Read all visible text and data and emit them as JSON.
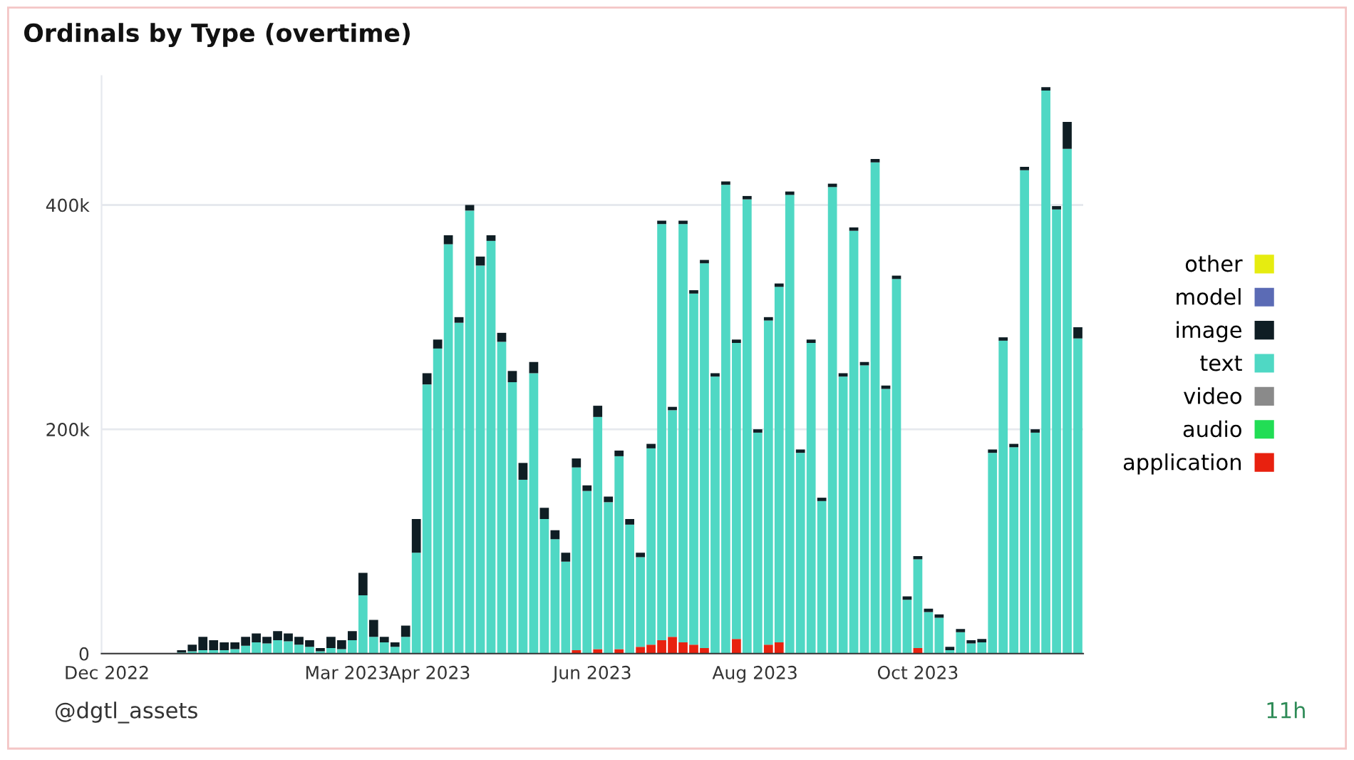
{
  "chart_data": {
    "type": "bar",
    "title": "Ordinals by Type (overtime)",
    "stacked": true,
    "grid": "y",
    "legend": "right",
    "x": [
      "2022-12-01",
      "2022-12-05",
      "2022-12-09",
      "2022-12-13",
      "2022-12-17",
      "2022-12-21",
      "2022-12-25",
      "2022-12-29",
      "2023-01-02",
      "2023-01-06",
      "2023-01-10",
      "2023-01-14",
      "2023-01-18",
      "2023-01-22",
      "2023-01-26",
      "2023-01-30",
      "2023-02-03",
      "2023-02-07",
      "2023-02-11",
      "2023-02-15",
      "2023-02-19",
      "2023-02-23",
      "2023-02-27",
      "2023-03-03",
      "2023-03-07",
      "2023-03-11",
      "2023-03-15",
      "2023-03-19",
      "2023-03-23",
      "2023-03-27",
      "2023-03-31",
      "2023-04-04",
      "2023-04-08",
      "2023-04-12",
      "2023-04-16",
      "2023-04-20",
      "2023-04-24",
      "2023-04-28",
      "2023-05-02",
      "2023-05-06",
      "2023-05-10",
      "2023-05-14",
      "2023-05-18",
      "2023-05-22",
      "2023-05-26",
      "2023-05-30",
      "2023-06-03",
      "2023-06-07",
      "2023-06-11",
      "2023-06-15",
      "2023-06-19",
      "2023-06-23",
      "2023-06-27",
      "2023-07-01",
      "2023-07-05",
      "2023-07-09",
      "2023-07-13",
      "2023-07-17",
      "2023-07-21",
      "2023-07-25",
      "2023-07-29",
      "2023-08-02",
      "2023-08-06",
      "2023-08-10",
      "2023-08-14",
      "2023-08-18",
      "2023-08-22",
      "2023-08-26",
      "2023-08-30",
      "2023-09-03",
      "2023-09-07",
      "2023-09-11",
      "2023-09-15",
      "2023-09-19",
      "2023-09-23",
      "2023-09-27",
      "2023-10-01",
      "2023-10-05",
      "2023-10-09",
      "2023-10-13",
      "2023-10-17",
      "2023-10-21",
      "2023-10-25",
      "2023-10-29",
      "2023-11-02",
      "2023-11-06",
      "2023-11-10",
      "2023-11-14",
      "2023-11-18",
      "2023-11-22",
      "2023-11-26",
      "2023-11-30"
    ],
    "series": [
      {
        "name": "application",
        "color": "#e8210f",
        "values": [
          0,
          0,
          0,
          0,
          0,
          0,
          0,
          0,
          0,
          0,
          0,
          0,
          0,
          0,
          0,
          0,
          0,
          0,
          0,
          0,
          0,
          0,
          0,
          0,
          0,
          0,
          0,
          0,
          0,
          0,
          0,
          0,
          0,
          0,
          0,
          0,
          0,
          0,
          0,
          0,
          0,
          0,
          0,
          0,
          3000,
          0,
          4000,
          0,
          4000,
          0,
          6000,
          8000,
          12000,
          15000,
          10000,
          8000,
          5000,
          0,
          0,
          13000,
          0,
          0,
          8000,
          10000,
          0,
          0,
          0,
          0,
          0,
          0,
          0,
          0,
          0,
          0,
          0,
          0,
          5000,
          0,
          0,
          0,
          0,
          0,
          0,
          0,
          0,
          0,
          0,
          0,
          0,
          0,
          0,
          0
        ]
      },
      {
        "name": "audio",
        "color": "#22dd55",
        "values": [
          0,
          0,
          0,
          0,
          0,
          0,
          0,
          0,
          0,
          0,
          0,
          0,
          0,
          0,
          0,
          0,
          0,
          0,
          0,
          0,
          0,
          0,
          0,
          0,
          0,
          0,
          0,
          0,
          0,
          0,
          0,
          0,
          0,
          0,
          0,
          0,
          0,
          0,
          0,
          0,
          0,
          0,
          0,
          0,
          0,
          0,
          0,
          0,
          0,
          0,
          0,
          0,
          0,
          0,
          0,
          0,
          0,
          0,
          0,
          0,
          0,
          0,
          0,
          0,
          0,
          0,
          0,
          0,
          0,
          0,
          0,
          0,
          0,
          0,
          0,
          0,
          0,
          0,
          0,
          0,
          0,
          0,
          0,
          0,
          0,
          0,
          0,
          0,
          0,
          0,
          0,
          0
        ]
      },
      {
        "name": "video",
        "color": "#8a8a8a",
        "values": [
          0,
          0,
          0,
          0,
          0,
          0,
          0,
          0,
          0,
          0,
          0,
          0,
          0,
          0,
          0,
          0,
          0,
          0,
          0,
          0,
          0,
          0,
          0,
          0,
          0,
          0,
          0,
          0,
          0,
          0,
          0,
          0,
          0,
          0,
          0,
          0,
          0,
          0,
          0,
          0,
          0,
          0,
          0,
          0,
          0,
          0,
          0,
          0,
          0,
          0,
          0,
          0,
          0,
          0,
          0,
          0,
          0,
          0,
          0,
          0,
          0,
          0,
          0,
          0,
          0,
          0,
          0,
          0,
          0,
          0,
          0,
          0,
          0,
          0,
          0,
          0,
          0,
          0,
          0,
          0,
          0,
          0,
          0,
          0,
          0,
          0,
          0,
          0,
          0,
          0,
          0,
          0
        ]
      },
      {
        "name": "text",
        "color": "#4fd8c4",
        "values": [
          0,
          0,
          0,
          0,
          0,
          0,
          0,
          1000,
          2000,
          3000,
          3000,
          3000,
          4000,
          7000,
          10000,
          9000,
          12000,
          11000,
          8000,
          6000,
          2000,
          5000,
          4000,
          12000,
          52000,
          15000,
          10000,
          6000,
          15000,
          90000,
          240000,
          272000,
          365000,
          295000,
          395000,
          346000,
          368000,
          278000,
          242000,
          155000,
          250000,
          120000,
          102000,
          82000,
          163000,
          145000,
          207000,
          135000,
          172000,
          115000,
          80000,
          175000,
          371000,
          202000,
          373000,
          313000,
          343000,
          247000,
          418000,
          264000,
          405000,
          197000,
          289000,
          317000,
          409000,
          179000,
          277000,
          136000,
          416000,
          247000,
          377000,
          257000,
          438000,
          236000,
          334000,
          48000,
          79000,
          37000,
          32000,
          3000,
          19000,
          9000,
          10000,
          179000,
          279000,
          184000,
          431000,
          197000,
          502000,
          396000,
          450000,
          281000
        ]
      },
      {
        "name": "image",
        "color": "#0f1e24",
        "values": [
          0,
          0,
          0,
          0,
          0,
          0,
          0,
          2000,
          6000,
          12000,
          9000,
          7000,
          6000,
          8000,
          8000,
          6000,
          8000,
          7000,
          7000,
          6000,
          3000,
          10000,
          8000,
          8000,
          20000,
          15000,
          5000,
          4000,
          10000,
          30000,
          10000,
          8000,
          8000,
          5000,
          5000,
          8000,
          5000,
          8000,
          10000,
          15000,
          10000,
          10000,
          8000,
          8000,
          8000,
          5000,
          10000,
          5000,
          5000,
          5000,
          4000,
          4000,
          3000,
          3000,
          3000,
          3000,
          3000,
          3000,
          3000,
          3000,
          3000,
          3000,
          3000,
          3000,
          3000,
          3000,
          3000,
          3000,
          3000,
          3000,
          3000,
          3000,
          3000,
          3000,
          3000,
          3000,
          3000,
          3000,
          3000,
          3000,
          3000,
          3000,
          3000,
          3000,
          3000,
          3000,
          3000,
          3000,
          3000,
          3000,
          24000,
          10000
        ]
      },
      {
        "name": "model",
        "color": "#5b6bb5",
        "values": [
          0,
          0,
          0,
          0,
          0,
          0,
          0,
          0,
          0,
          0,
          0,
          0,
          0,
          0,
          0,
          0,
          0,
          0,
          0,
          0,
          0,
          0,
          0,
          0,
          0,
          0,
          0,
          0,
          0,
          0,
          0,
          0,
          0,
          0,
          0,
          0,
          0,
          0,
          0,
          0,
          0,
          0,
          0,
          0,
          0,
          0,
          0,
          0,
          0,
          0,
          0,
          0,
          0,
          0,
          0,
          0,
          0,
          0,
          0,
          0,
          0,
          0,
          0,
          0,
          0,
          0,
          0,
          0,
          0,
          0,
          0,
          0,
          0,
          0,
          0,
          0,
          0,
          0,
          0,
          0,
          0,
          0,
          0,
          0,
          0,
          0,
          0,
          0,
          0,
          0,
          0,
          0
        ]
      },
      {
        "name": "other",
        "color": "#e6ec10",
        "values": [
          0,
          0,
          0,
          0,
          0,
          0,
          0,
          0,
          0,
          0,
          0,
          0,
          0,
          0,
          0,
          0,
          0,
          0,
          0,
          0,
          0,
          0,
          0,
          0,
          0,
          0,
          0,
          0,
          0,
          0,
          0,
          0,
          0,
          0,
          0,
          0,
          0,
          0,
          0,
          0,
          0,
          0,
          0,
          0,
          0,
          0,
          0,
          0,
          0,
          0,
          0,
          0,
          0,
          0,
          0,
          0,
          0,
          0,
          0,
          0,
          0,
          0,
          0,
          0,
          0,
          0,
          0,
          0,
          0,
          0,
          0,
          0,
          0,
          0,
          0,
          0,
          0,
          0,
          0,
          0,
          0,
          0,
          0,
          0,
          0,
          0,
          0,
          0,
          0,
          0,
          0,
          0
        ]
      }
    ],
    "xlim": [
      "2022-11-29",
      "2023-12-02"
    ],
    "xticks": [
      {
        "value": "2022-12-01",
        "label": "Dec 2022"
      },
      {
        "value": "2023-03-01",
        "label": "Mar 2023"
      },
      {
        "value": "2023-04-01",
        "label": "Apr 2023"
      },
      {
        "value": "2023-06-01",
        "label": "Jun 2023"
      },
      {
        "value": "2023-08-01",
        "label": "Aug 2023"
      },
      {
        "value": "2023-10-01",
        "label": "Oct 2023"
      }
    ],
    "ylim": [
      0,
      515000
    ],
    "yticks": [
      {
        "value": 0,
        "label": "0"
      },
      {
        "value": 200000,
        "label": "200k"
      },
      {
        "value": 400000,
        "label": "400k"
      }
    ],
    "annotations": [
      "@dgtl_assets",
      "11h"
    ]
  }
}
